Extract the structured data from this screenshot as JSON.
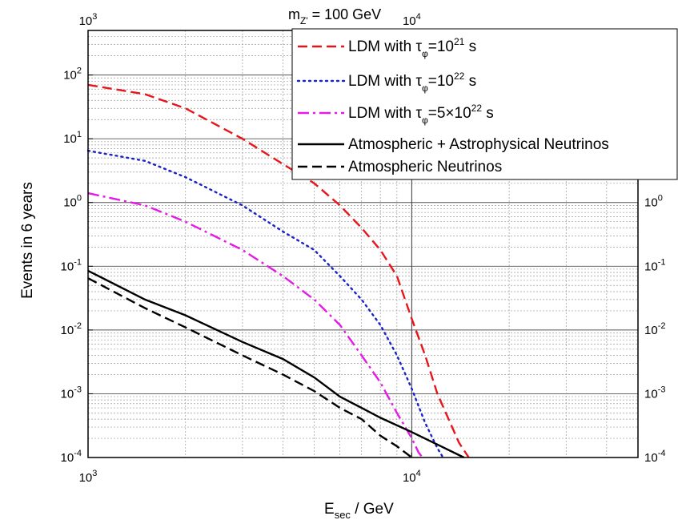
{
  "chart_data": {
    "type": "line",
    "title": "m",
    "title_sub": "Z'",
    "title_rest": " = 100 GeV",
    "xlabel": "E",
    "xlabel_sub": "sec",
    "xlabel_rest": " / GeV",
    "ylabel": "Events in 6 years",
    "x_scale": "log",
    "y_scale": "log",
    "xlim": [
      1000,
      50000
    ],
    "ylim": [
      0.0001,
      500
    ],
    "grid": true,
    "legend_position": "top-right",
    "x_ticks": [
      {
        "value": 1000,
        "base": "10",
        "exp": "3"
      },
      {
        "value": 10000,
        "base": "10",
        "exp": "4"
      }
    ],
    "y_ticks": [
      {
        "value": 0.0001,
        "base": "10",
        "exp": "-4"
      },
      {
        "value": 0.001,
        "base": "10",
        "exp": "-3"
      },
      {
        "value": 0.01,
        "base": "10",
        "exp": "-2"
      },
      {
        "value": 0.1,
        "base": "10",
        "exp": "-1"
      },
      {
        "value": 1,
        "base": "10",
        "exp": "0"
      },
      {
        "value": 10,
        "base": "10",
        "exp": "1"
      },
      {
        "value": 100,
        "base": "10",
        "exp": "2"
      }
    ],
    "series": [
      {
        "name": "LDM with τφ=10²¹ s",
        "label_parts": {
          "pre": "LDM with ",
          "sym": "τ",
          "sub": "φ",
          "mid": "=10",
          "sup": "21",
          "post": " s"
        },
        "color": "#e8141b",
        "style": "dashed",
        "x": [
          1000,
          1500,
          2000,
          3000,
          4000,
          5000,
          6000,
          7000,
          8000,
          9000,
          10000,
          11000,
          12000,
          13000,
          14000,
          15000
        ],
        "y": [
          70,
          50,
          30,
          10,
          4,
          2,
          0.9,
          0.4,
          0.18,
          0.07,
          0.015,
          0.004,
          0.001,
          0.0004,
          0.00017,
          0.0001
        ]
      },
      {
        "name": "LDM with τφ=10²² s",
        "label_parts": {
          "pre": "LDM with ",
          "sym": "τ",
          "sub": "φ",
          "mid": "=10",
          "sup": "22",
          "post": " s"
        },
        "color": "#1a22c8",
        "style": "dotted",
        "x": [
          1000,
          1500,
          2000,
          3000,
          4000,
          5000,
          6000,
          7000,
          8000,
          9000,
          10000,
          11000,
          12000,
          12500
        ],
        "y": [
          6.5,
          4.5,
          2.5,
          0.9,
          0.35,
          0.18,
          0.07,
          0.03,
          0.012,
          0.004,
          0.0012,
          0.00035,
          0.00014,
          0.0001
        ]
      },
      {
        "name": "LDM with τφ=5×10²² s",
        "label_parts": {
          "pre": "LDM with ",
          "sym": "τ",
          "sub": "φ",
          "mid": "=5×10",
          "sup": "22",
          "post": " s"
        },
        "color": "#e619e6",
        "style": "dashdot",
        "x": [
          1000,
          1500,
          2000,
          3000,
          4000,
          5000,
          6000,
          7000,
          8000,
          9000,
          10000,
          10500,
          10800
        ],
        "y": [
          1.4,
          0.9,
          0.5,
          0.18,
          0.07,
          0.03,
          0.012,
          0.004,
          0.0015,
          0.0005,
          0.0002,
          0.00012,
          0.0001
        ]
      },
      {
        "name": "Atmospheric + Astrophysical Neutrinos",
        "label_parts": {
          "pre": "Atmospheric + Astrophysical Neutrinos",
          "sym": "",
          "sub": "",
          "mid": "",
          "sup": "",
          "post": ""
        },
        "color": "#000000",
        "style": "solid",
        "x": [
          1000,
          1500,
          2000,
          3000,
          4000,
          5000,
          6000,
          7000,
          8000,
          10000,
          12000,
          14500
        ],
        "y": [
          0.085,
          0.03,
          0.017,
          0.0065,
          0.0035,
          0.0018,
          0.0009,
          0.0006,
          0.00042,
          0.00025,
          0.00016,
          0.0001
        ]
      },
      {
        "name": "Atmospheric Neutrinos",
        "label_parts": {
          "pre": "Atmospheric Neutrinos",
          "sym": "",
          "sub": "",
          "mid": "",
          "sup": "",
          "post": ""
        },
        "color": "#000000",
        "style": "dashed",
        "x": [
          1000,
          1500,
          2000,
          3000,
          4000,
          5000,
          6000,
          7000,
          8000,
          9000,
          10000
        ],
        "y": [
          0.065,
          0.022,
          0.011,
          0.004,
          0.002,
          0.0011,
          0.0006,
          0.0004,
          0.00022,
          0.00015,
          0.0001
        ]
      }
    ]
  }
}
